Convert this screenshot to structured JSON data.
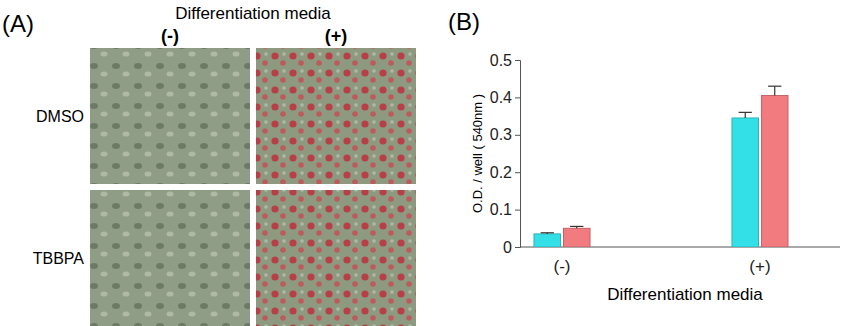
{
  "panel_a": {
    "label": "(A)",
    "column_title": "Differentiation media",
    "columns": [
      "(-)",
      "(+)"
    ],
    "rows": [
      "DMSO",
      "TBBPA"
    ]
  },
  "chart_data": {
    "type": "bar",
    "panel_label": "(B)",
    "x_label": "Differentiation media",
    "y_label": "O.D. / well ( 540nm )",
    "categories": [
      "(-)",
      "(+)"
    ],
    "series": [
      {
        "color": "#33e0e8",
        "values": [
          0.035,
          0.345
        ],
        "errors": [
          0.003,
          0.015
        ]
      },
      {
        "color": "#f27b80",
        "values": [
          0.05,
          0.405
        ],
        "errors": [
          0.005,
          0.025
        ]
      }
    ],
    "ylim": [
      0,
      0.5
    ],
    "yticks": [
      0,
      0.1,
      0.2,
      0.3,
      0.4,
      0.5
    ]
  }
}
